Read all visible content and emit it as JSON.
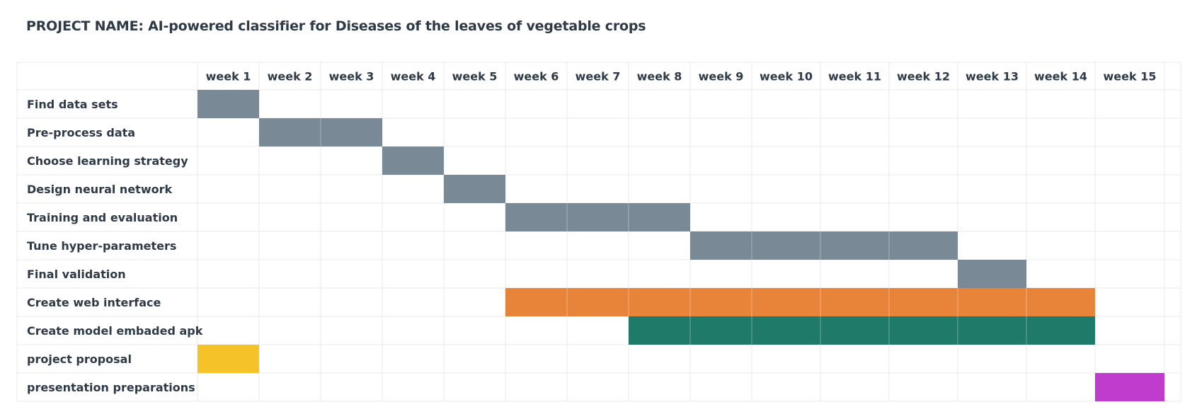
{
  "title": "PROJECT NAME: AI-powered classifier for Diseases of the leaves of vegetable crops",
  "chart_data": {
    "type": "gantt",
    "title": "PROJECT NAME: AI-powered classifier for Diseases of the leaves of vegetable crops",
    "weeks": [
      "week 1",
      "week 2",
      "week 3",
      "week 4",
      "week 5",
      "week 6",
      "week 7",
      "week 8",
      "week 9",
      "week 10",
      "week 11",
      "week 12",
      "week 13",
      "week 14",
      "week 15"
    ],
    "tasks": [
      {
        "name": "Find data sets",
        "start_week": 1,
        "end_week": 1,
        "color": "#7a8996"
      },
      {
        "name": "Pre-process data",
        "start_week": 2,
        "end_week": 3,
        "color": "#7a8996"
      },
      {
        "name": "Choose learning strategy",
        "start_week": 4,
        "end_week": 4,
        "color": "#7a8996"
      },
      {
        "name": "Design neural network",
        "start_week": 5,
        "end_week": 5,
        "color": "#7a8996"
      },
      {
        "name": "Training and evaluation",
        "start_week": 6,
        "end_week": 8,
        "color": "#7a8996"
      },
      {
        "name": "Tune hyper-parameters",
        "start_week": 9,
        "end_week": 12,
        "color": "#7a8996"
      },
      {
        "name": "Final validation",
        "start_week": 13,
        "end_week": 13,
        "color": "#7a8996"
      },
      {
        "name": "Create web interface",
        "start_week": 6,
        "end_week": 14,
        "color": "#e8843a"
      },
      {
        "name": "Create model embaded apk",
        "start_week": 8,
        "end_week": 14,
        "color": "#207a6a"
      },
      {
        "name": "project proposal",
        "start_week": 1,
        "end_week": 1,
        "color": "#f5c328"
      },
      {
        "name": "presentation preparations",
        "start_week": 15,
        "end_week": 15,
        "color": "#c03ccc"
      }
    ]
  }
}
